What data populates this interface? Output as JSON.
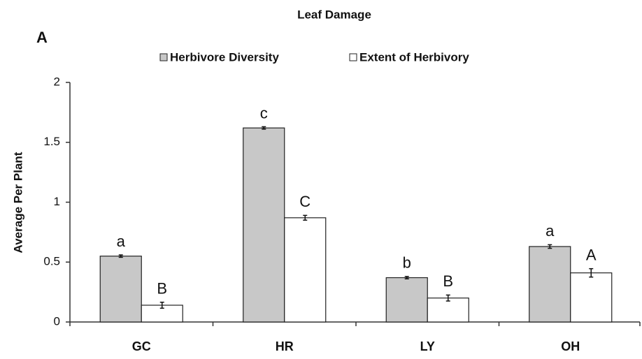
{
  "chart_data": {
    "type": "bar",
    "title": "Leaf Damage",
    "panel_label": "A",
    "y_label": "Average Per Plant",
    "categories": [
      "GC",
      "HR",
      "LY",
      "OH"
    ],
    "series": [
      {
        "name": "Herbivore Diversity",
        "color": "#c8c8c8",
        "values": [
          0.55,
          1.62,
          0.37,
          0.63
        ],
        "errors": [
          0.01,
          0.01,
          0.01,
          0.015
        ],
        "letters": [
          "a",
          "c",
          "b",
          "a"
        ]
      },
      {
        "name": "Extent of Herbivory",
        "color": "#ffffff",
        "values": [
          0.14,
          0.87,
          0.2,
          0.41
        ],
        "errors": [
          0.025,
          0.02,
          0.025,
          0.035
        ],
        "letters": [
          "B",
          "C",
          "B",
          "A"
        ]
      }
    ],
    "ylim": [
      0,
      2
    ],
    "yticks": [
      0,
      0.5,
      1,
      1.5,
      2
    ],
    "grid": false,
    "legend": "top"
  }
}
